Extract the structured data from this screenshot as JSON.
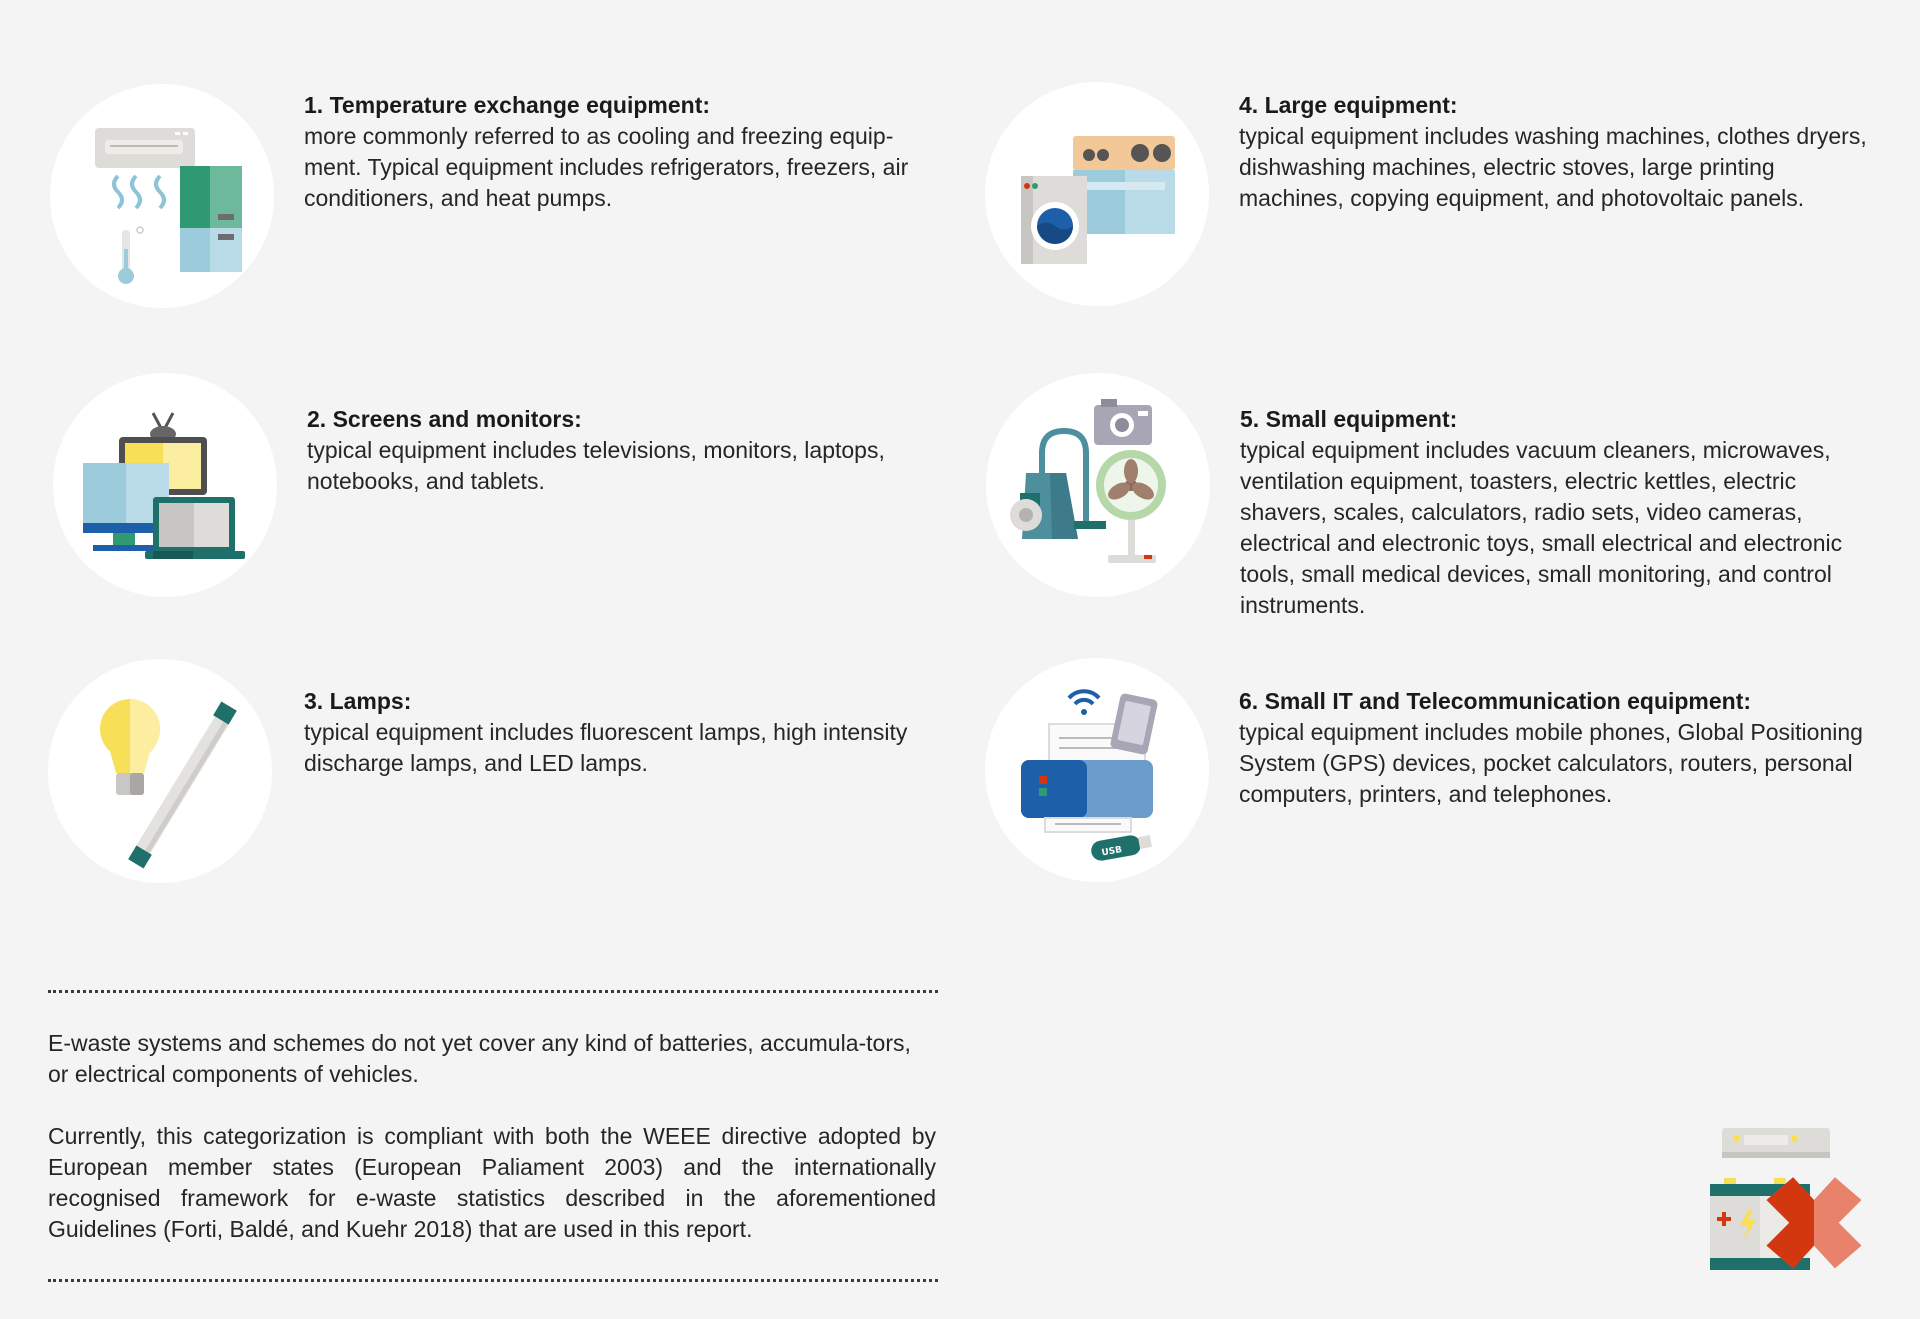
{
  "categories": [
    {
      "title": "1. Temperature exchange equipment:",
      "text": "more commonly referred to as cooling and freezing equip-ment. Typical equipment includes refrigerators, freezers, air conditioners, and heat pumps.",
      "icon": "cooling-freezing-icon"
    },
    {
      "title": "2. Screens and monitors:",
      "text": "typical equipment includes televisions, monitors, laptops, notebooks, and tablets.",
      "icon": "screens-monitors-icon"
    },
    {
      "title": "3. Lamps:",
      "text": "typical equipment includes fluorescent lamps, high intensity discharge lamps, and LED lamps.",
      "icon": "lamps-icon"
    },
    {
      "title": "4. Large equipment:",
      "text": "typical equipment includes washing machines, clothes dryers, dishwashing machines, electric stoves, large printing machines, copying equipment, and photovoltaic panels.",
      "icon": "large-equipment-icon"
    },
    {
      "title": "5. Small equipment:",
      "text": "typical equipment includes vacuum cleaners, microwaves, ventilation equipment, toasters, electric kettles, electric shavers, scales, calculators, radio sets, video cameras, electrical and electronic toys, small electrical and electronic tools, small medical devices, small monitoring, and control instruments.",
      "icon": "small-equipment-icon"
    },
    {
      "title": "6. Small IT and Telecommunication equipment:",
      "text": "typical equipment includes mobile phones, Global Positioning System (GPS) devices, pocket calculators, routers, personal computers, printers, and telephones.",
      "icon": "it-telecom-icon"
    }
  ],
  "notes": {
    "exclusion": "E-waste systems and schemes do not yet cover any kind of batteries, accumula-tors, or electrical components of vehicles.",
    "compliance": "Currently, this categorization is compliant with both the WEEE directive adopted by European member states (European Paliament 2003) and the internationally recognised framework for e-waste statistics described in the aforementioned Guidelines (Forti, Baldé, and Kuehr 2018) that are used in this report."
  },
  "excluded_icon": {
    "icon": "excluded-batteries-icon",
    "cross_colors": [
      "#d2370f",
      "#e8826a"
    ]
  },
  "colors": {
    "background": "#f3f4f3",
    "teal": "#1f6f6b",
    "green": "#2f9a72",
    "light_blue": "#9ccbdc",
    "blue": "#1d5fa8",
    "yellow": "#f7df58"
  }
}
